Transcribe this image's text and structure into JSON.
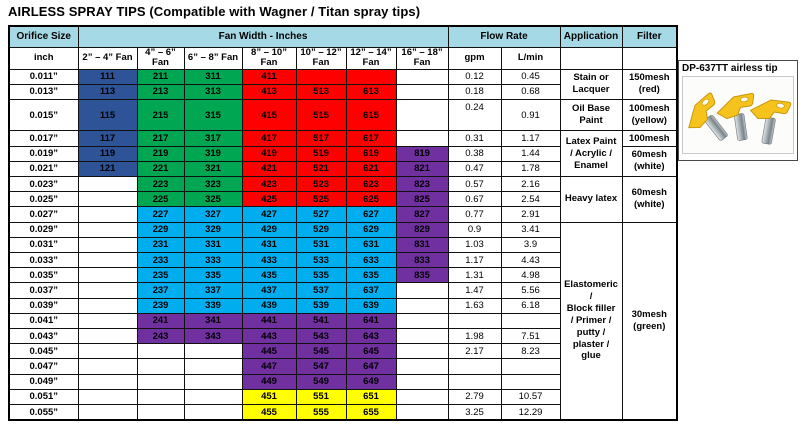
{
  "title": "AIRLESS SPRAY TIPS (Compatible with Wagner / Titan spray tips)",
  "colors": {
    "navy": "#2e5397",
    "green": "#00a651",
    "red": "#fe0000",
    "cyan": "#00aeef",
    "purple": "#7030a0",
    "yellow": "#ffff00",
    "header_bg": "#a6d9e6",
    "tip_yellow": "#f6c31c",
    "tip_outline": "#c8960c"
  },
  "table": {
    "header_row1": {
      "orifice": "Orifice Size",
      "fan_width": "Fan Width - Inches",
      "flow_rate": "Flow Rate",
      "application": "Application",
      "filter": "Filter"
    },
    "header_row2": {
      "inch": "inch",
      "fans": [
        [
          "2” – 4” Fan"
        ],
        [
          "4” – 6”",
          "Fan"
        ],
        [
          "6” – 8” Fan"
        ],
        [
          "8” – 10”",
          "Fan"
        ],
        [
          "10” – 12”",
          "Fan"
        ],
        [
          "12” – 14”",
          "Fan"
        ],
        [
          "16” – 18”",
          "Fan"
        ]
      ],
      "gpm": "gpm",
      "lmin": "L/min"
    },
    "rows": [
      {
        "orifice": "0.011”",
        "h": 1,
        "tips": [
          {
            "v": "111",
            "bg": "navy"
          },
          {
            "v": "211",
            "bg": "green"
          },
          {
            "v": "311",
            "bg": "green"
          },
          {
            "v": "411",
            "bg": "red"
          },
          {
            "v": "",
            "bg": "red"
          },
          {
            "v": "",
            "bg": "red"
          },
          null
        ],
        "gpm": "0.12",
        "lmin": "0.45",
        "app": {
          "span": 2,
          "lines": [
            "Stain or",
            "Lacquer"
          ]
        },
        "filter": {
          "span": 2,
          "lines": [
            "150mesh",
            "(red)"
          ]
        }
      },
      {
        "orifice": "0.013”",
        "h": 1,
        "tips": [
          {
            "v": "113",
            "bg": "navy"
          },
          {
            "v": "213",
            "bg": "green"
          },
          {
            "v": "313",
            "bg": "green"
          },
          {
            "v": "413",
            "bg": "red"
          },
          {
            "v": "513",
            "bg": "red"
          },
          {
            "v": "613",
            "bg": "red"
          },
          null
        ],
        "gpm": "0.18",
        "lmin": "0.68"
      },
      {
        "orifice": "0.015”",
        "h": 2,
        "tips": [
          {
            "v": "115",
            "bg": "navy"
          },
          {
            "v": "215",
            "bg": "green"
          },
          {
            "v": "315",
            "bg": "green"
          },
          {
            "v": "415",
            "bg": "red"
          },
          {
            "v": "515",
            "bg": "red"
          },
          {
            "v": "615",
            "bg": "red"
          },
          null
        ],
        "gpm": "0.24",
        "lmin": "0.91",
        "app": {
          "span": 1,
          "lines": [
            "Oil Base",
            "Paint"
          ]
        },
        "filter": {
          "span": 1,
          "lines": [
            "100mesh",
            "(yellow)"
          ]
        }
      },
      {
        "orifice": "0.017”",
        "h": 1,
        "tips": [
          {
            "v": "117",
            "bg": "navy"
          },
          {
            "v": "217",
            "bg": "green"
          },
          {
            "v": "317",
            "bg": "green"
          },
          {
            "v": "417",
            "bg": "red"
          },
          {
            "v": "517",
            "bg": "red"
          },
          {
            "v": "617",
            "bg": "red"
          },
          null
        ],
        "gpm": "0.31",
        "lmin": "1.17",
        "app": {
          "span": 3,
          "lines": [
            "Latex Paint",
            "/ Acrylic /",
            "Enamel"
          ]
        },
        "filter": {
          "span": 1,
          "lines": [
            "100mesh"
          ]
        }
      },
      {
        "orifice": "0.019”",
        "h": 1,
        "tips": [
          {
            "v": "119",
            "bg": "navy"
          },
          {
            "v": "219",
            "bg": "green"
          },
          {
            "v": "319",
            "bg": "green"
          },
          {
            "v": "419",
            "bg": "red"
          },
          {
            "v": "519",
            "bg": "red"
          },
          {
            "v": "619",
            "bg": "red"
          },
          {
            "v": "819",
            "bg": "purple"
          }
        ],
        "gpm": "0.38",
        "lmin": "1.44",
        "filter": {
          "span": 2,
          "lines": [
            "60mesh",
            "(white)"
          ]
        }
      },
      {
        "orifice": "0.021”",
        "h": 1,
        "tips": [
          {
            "v": "121",
            "bg": "navy"
          },
          {
            "v": "221",
            "bg": "green"
          },
          {
            "v": "321",
            "bg": "green"
          },
          {
            "v": "421",
            "bg": "red"
          },
          {
            "v": "521",
            "bg": "red"
          },
          {
            "v": "621",
            "bg": "red"
          },
          {
            "v": "821",
            "bg": "purple"
          }
        ],
        "gpm": "0.47",
        "lmin": "1.78"
      },
      {
        "orifice": "0.023”",
        "h": 1,
        "tips": [
          null,
          {
            "v": "223",
            "bg": "green"
          },
          {
            "v": "323",
            "bg": "green"
          },
          {
            "v": "423",
            "bg": "red"
          },
          {
            "v": "523",
            "bg": "red"
          },
          {
            "v": "623",
            "bg": "red"
          },
          {
            "v": "823",
            "bg": "purple"
          }
        ],
        "gpm": "0.57",
        "lmin": "2.16",
        "app": {
          "span": 3,
          "lines": [
            "Heavy latex"
          ]
        },
        "filter": {
          "span": 3,
          "lines": [
            "60mesh",
            "(white)"
          ]
        }
      },
      {
        "orifice": "0.025”",
        "h": 1,
        "tips": [
          null,
          {
            "v": "225",
            "bg": "green"
          },
          {
            "v": "325",
            "bg": "green"
          },
          {
            "v": "425",
            "bg": "red"
          },
          {
            "v": "525",
            "bg": "red"
          },
          {
            "v": "625",
            "bg": "red"
          },
          {
            "v": "825",
            "bg": "purple"
          }
        ],
        "gpm": "0.67",
        "lmin": "2.54"
      },
      {
        "orifice": "0.027”",
        "h": 1,
        "tips": [
          null,
          {
            "v": "227",
            "bg": "cyan"
          },
          {
            "v": "327",
            "bg": "cyan"
          },
          {
            "v": "427",
            "bg": "cyan"
          },
          {
            "v": "527",
            "bg": "cyan"
          },
          {
            "v": "627",
            "bg": "cyan"
          },
          {
            "v": "827",
            "bg": "purple"
          }
        ],
        "gpm": "0.77",
        "lmin": "2.91"
      },
      {
        "orifice": "0.029”",
        "h": 1,
        "tips": [
          null,
          {
            "v": "229",
            "bg": "cyan"
          },
          {
            "v": "329",
            "bg": "cyan"
          },
          {
            "v": "429",
            "bg": "cyan"
          },
          {
            "v": "529",
            "bg": "cyan"
          },
          {
            "v": "629",
            "bg": "cyan"
          },
          {
            "v": "829",
            "bg": "purple"
          }
        ],
        "gpm": "0.9",
        "lmin": "3.41",
        "app": {
          "span": 13,
          "lines": [
            "Elastomeric",
            "/",
            "Block filler",
            "/ Primer /",
            "putty /",
            "plaster /",
            "glue"
          ]
        },
        "filter": {
          "span": 13,
          "lines": [
            "30mesh",
            "(green)"
          ]
        }
      },
      {
        "orifice": "0.031”",
        "h": 1,
        "tips": [
          null,
          {
            "v": "231",
            "bg": "cyan"
          },
          {
            "v": "331",
            "bg": "cyan"
          },
          {
            "v": "431",
            "bg": "cyan"
          },
          {
            "v": "531",
            "bg": "cyan"
          },
          {
            "v": "631",
            "bg": "cyan"
          },
          {
            "v": "831",
            "bg": "purple"
          }
        ],
        "gpm": "1.03",
        "lmin": "3.9"
      },
      {
        "orifice": "0.033”",
        "h": 1,
        "tips": [
          null,
          {
            "v": "233",
            "bg": "cyan"
          },
          {
            "v": "333",
            "bg": "cyan"
          },
          {
            "v": "433",
            "bg": "cyan"
          },
          {
            "v": "533",
            "bg": "cyan"
          },
          {
            "v": "633",
            "bg": "cyan"
          },
          {
            "v": "833",
            "bg": "purple"
          }
        ],
        "gpm": "1.17",
        "lmin": "4.43"
      },
      {
        "orifice": "0.035”",
        "h": 1,
        "tips": [
          null,
          {
            "v": "235",
            "bg": "cyan"
          },
          {
            "v": "335",
            "bg": "cyan"
          },
          {
            "v": "435",
            "bg": "cyan"
          },
          {
            "v": "535",
            "bg": "cyan"
          },
          {
            "v": "635",
            "bg": "cyan"
          },
          {
            "v": "835",
            "bg": "purple"
          }
        ],
        "gpm": "1.31",
        "lmin": "4.98"
      },
      {
        "orifice": "0.037”",
        "h": 1,
        "tips": [
          null,
          {
            "v": "237",
            "bg": "cyan"
          },
          {
            "v": "337",
            "bg": "cyan"
          },
          {
            "v": "437",
            "bg": "cyan"
          },
          {
            "v": "537",
            "bg": "cyan"
          },
          {
            "v": "637",
            "bg": "cyan"
          },
          null
        ],
        "gpm": "1.47",
        "lmin": "5.56"
      },
      {
        "orifice": "0.039”",
        "h": 1,
        "tips": [
          null,
          {
            "v": "239",
            "bg": "cyan"
          },
          {
            "v": "339",
            "bg": "cyan"
          },
          {
            "v": "439",
            "bg": "cyan"
          },
          {
            "v": "539",
            "bg": "cyan"
          },
          {
            "v": "639",
            "bg": "cyan"
          },
          null
        ],
        "gpm": "1.63",
        "lmin": "6.18"
      },
      {
        "orifice": "0.041”",
        "h": 1,
        "tips": [
          null,
          {
            "v": "241",
            "bg": "purple"
          },
          {
            "v": "341",
            "bg": "purple"
          },
          {
            "v": "441",
            "bg": "purple"
          },
          {
            "v": "541",
            "bg": "purple"
          },
          {
            "v": "641",
            "bg": "purple"
          },
          null
        ],
        "gpm": "",
        "lmin": ""
      },
      {
        "orifice": "0.043”",
        "h": 1,
        "tips": [
          null,
          {
            "v": "243",
            "bg": "purple"
          },
          {
            "v": "343",
            "bg": "purple"
          },
          {
            "v": "443",
            "bg": "purple"
          },
          {
            "v": "543",
            "bg": "purple"
          },
          {
            "v": "643",
            "bg": "purple"
          },
          null
        ],
        "gpm": "1.98",
        "lmin": "7.51"
      },
      {
        "orifice": "0.045”",
        "h": 1,
        "tips": [
          null,
          null,
          null,
          {
            "v": "445",
            "bg": "purple"
          },
          {
            "v": "545",
            "bg": "purple"
          },
          {
            "v": "645",
            "bg": "purple"
          },
          null
        ],
        "gpm": "2.17",
        "lmin": "8.23"
      },
      {
        "orifice": "0.047”",
        "h": 1,
        "tips": [
          null,
          null,
          null,
          {
            "v": "447",
            "bg": "purple"
          },
          {
            "v": "547",
            "bg": "purple"
          },
          {
            "v": "647",
            "bg": "purple"
          },
          null
        ],
        "gpm": "",
        "lmin": ""
      },
      {
        "orifice": "0.049”",
        "h": 1,
        "tips": [
          null,
          null,
          null,
          {
            "v": "449",
            "bg": "purple"
          },
          {
            "v": "549",
            "bg": "purple"
          },
          {
            "v": "649",
            "bg": "purple"
          },
          null
        ],
        "gpm": "",
        "lmin": ""
      },
      {
        "orifice": "0.051”",
        "h": 1,
        "tips": [
          null,
          null,
          null,
          {
            "v": "451",
            "bg": "yellow"
          },
          {
            "v": "551",
            "bg": "yellow"
          },
          {
            "v": "651",
            "bg": "yellow"
          },
          null
        ],
        "gpm": "2.79",
        "lmin": "10.57"
      },
      {
        "orifice": "0.055”",
        "h": 1,
        "tips": [
          null,
          null,
          null,
          {
            "v": "455",
            "bg": "yellow"
          },
          {
            "v": "555",
            "bg": "yellow"
          },
          {
            "v": "655",
            "bg": "yellow"
          },
          null
        ],
        "gpm": "3.25",
        "lmin": "12.29"
      }
    ]
  },
  "side": {
    "box_title": "DP-637TT airless tip"
  }
}
